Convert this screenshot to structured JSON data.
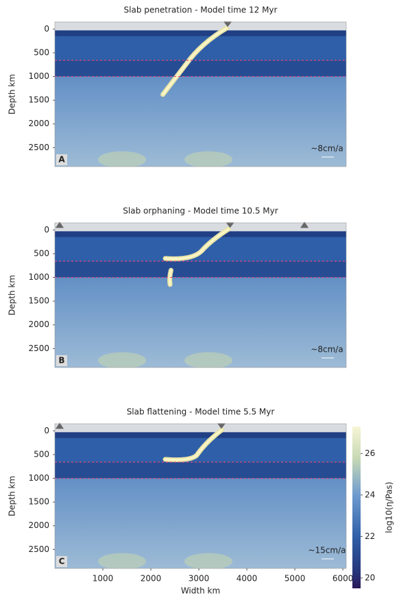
{
  "chart_data": [
    {
      "type": "field",
      "title": "Slab penetration - Model time 12 Myr",
      "ylabel": "Depth km",
      "panel_label": "A",
      "velocity_label": "~8cm/a",
      "xlim": [
        0,
        6070
      ],
      "ylim": [
        2900,
        -150
      ],
      "yticks": [
        0,
        500,
        1000,
        1500,
        2000,
        2500
      ],
      "dashed_lines": [
        660,
        1000
      ]
    },
    {
      "type": "field",
      "title": "Slab orphaning - Model time 10.5 Myr",
      "ylabel": "Depth km",
      "panel_label": "B",
      "velocity_label": "~8cm/a",
      "xlim": [
        0,
        6070
      ],
      "ylim": [
        2900,
        -150
      ],
      "yticks": [
        0,
        500,
        1000,
        1500,
        2000,
        2500
      ],
      "dashed_lines": [
        660,
        1000
      ]
    },
    {
      "type": "field",
      "title": "Slab flattening - Model time 5.5 Myr",
      "ylabel": "Depth km",
      "xlabel": "Width km",
      "panel_label": "C",
      "velocity_label": "~15cm/a",
      "xlim": [
        0,
        6070
      ],
      "ylim": [
        2900,
        -150
      ],
      "yticks": [
        0,
        500,
        1000,
        1500,
        2000,
        2500
      ],
      "xticks": [
        1000,
        2000,
        3000,
        4000,
        5000,
        6000
      ],
      "dashed_lines": [
        660,
        1000
      ],
      "colorbar": {
        "label": "log10(η/Pas)",
        "lim": [
          19.5,
          27.3
        ],
        "ticks": [
          20,
          22,
          24,
          26
        ]
      }
    }
  ]
}
